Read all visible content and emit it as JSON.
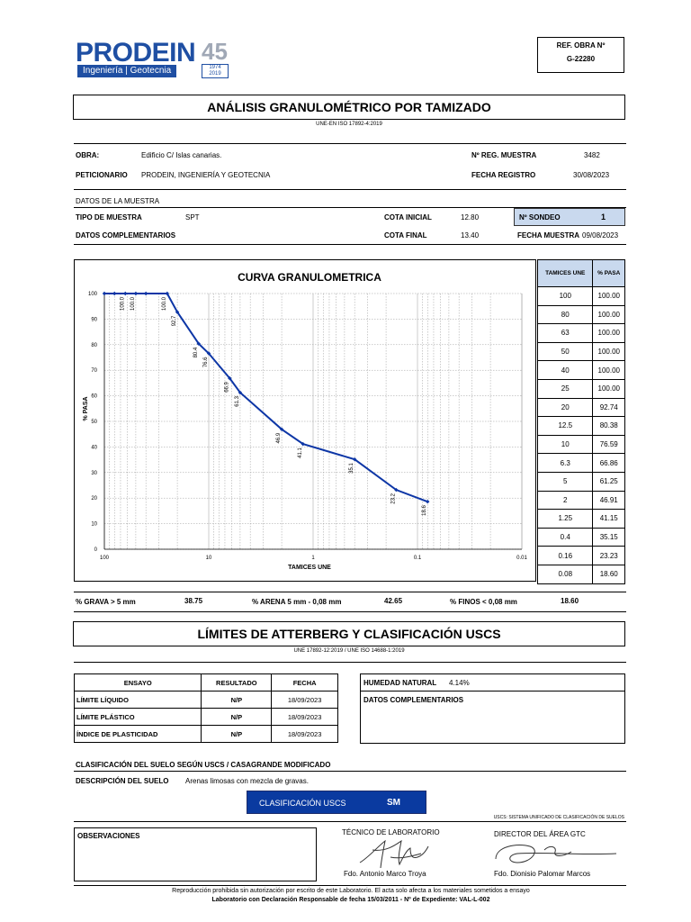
{
  "logo": {
    "name": "PRODEIN",
    "tagline": "Ingeniería | Geotecnia",
    "anniversary": "45",
    "years_top": "1974",
    "years_bottom": "2019"
  },
  "ref": {
    "label": "REF. OBRA Nº",
    "value": "G-22280"
  },
  "title": "ANÁLISIS GRANULOMÉTRICO POR TAMIZADO",
  "norm1": "UNE-EN ISO 17892-4:2019",
  "obra": {
    "label": "OBRA:",
    "value": "Edificio C/ Islas canarias."
  },
  "reg_muestra": {
    "label": "Nº REG. MUESTRA",
    "value": "3482"
  },
  "peticionario": {
    "label": "PETICIONARIO",
    "value": "PRODEIN, INGENIERÍA Y GEOTECNIA"
  },
  "fecha_registro": {
    "label": "FECHA REGISTRO",
    "value": "30/08/2023"
  },
  "datos_muestra": "DATOS DE LA MUESTRA",
  "tipo_muestra": {
    "label": "TIPO DE MUESTRA",
    "value": "SPT"
  },
  "cota_inicial": {
    "label": "COTA INICIAL",
    "value": "12.80"
  },
  "sondeo": {
    "label": "Nº SONDEO",
    "value": "1"
  },
  "datos_complementarios": {
    "label": "DATOS COMPLEMENTARIOS"
  },
  "cota_final": {
    "label": "COTA FINAL",
    "value": "13.40"
  },
  "fecha_muestra": {
    "label": "FECHA MUESTRA",
    "value": "09/08/2023"
  },
  "chart_data": {
    "type": "line",
    "title": "CURVA GRANULOMETRICA",
    "xlabel": "TAMICES UNE",
    "ylabel": "% PASA",
    "x_scale": "log",
    "x_reversed": true,
    "xlim": [
      100,
      0.01
    ],
    "ylim": [
      0,
      100
    ],
    "x_ticks": [
      "100",
      "10",
      "1",
      "0.1",
      "0.01"
    ],
    "y_ticks": [
      "0",
      "10",
      "20",
      "30",
      "40",
      "50",
      "60",
      "70",
      "80",
      "90",
      "100"
    ],
    "grid": true,
    "x": [
      100,
      80,
      63,
      50,
      40,
      25,
      20,
      12.5,
      10,
      6.3,
      5,
      2,
      1.25,
      0.4,
      0.16,
      0.08
    ],
    "y": [
      100,
      100,
      100,
      100,
      100,
      100,
      92.74,
      80.38,
      76.59,
      66.86,
      61.25,
      46.91,
      41.15,
      35.15,
      23.23,
      18.6
    ],
    "point_labels": [
      "",
      "",
      "100.0",
      "100.0",
      "",
      "100.0",
      "92.7",
      "80.4",
      "76.6",
      "66.9",
      "61.3",
      "46.9",
      "41.1",
      "35.1",
      "23.2",
      "18.6"
    ],
    "color": "#0d36a6"
  },
  "sieve_table": {
    "head_sieve": "TAMICES UNE",
    "head_pass": "% PASA",
    "rows": [
      [
        "100",
        "100.00"
      ],
      [
        "80",
        "100.00"
      ],
      [
        "63",
        "100.00"
      ],
      [
        "50",
        "100.00"
      ],
      [
        "40",
        "100.00"
      ],
      [
        "25",
        "100.00"
      ],
      [
        "20",
        "92.74"
      ],
      [
        "12.5",
        "80.38"
      ],
      [
        "10",
        "76.59"
      ],
      [
        "6.3",
        "66.86"
      ],
      [
        "5",
        "61.25"
      ],
      [
        "2",
        "46.91"
      ],
      [
        "1.25",
        "41.15"
      ],
      [
        "0.4",
        "35.15"
      ],
      [
        "0.16",
        "23.23"
      ],
      [
        "0.08",
        "18.60"
      ]
    ]
  },
  "summary": {
    "grava_label": "% GRAVA > 5 mm",
    "grava": "38.75",
    "arena_label": "% ARENA 5 mm - 0,08 mm",
    "arena": "42.65",
    "finos_label": "% FINOS < 0,08 mm",
    "finos": "18.60"
  },
  "atterberg_title": "LÍMITES DE ATTERBERG Y CLASIFICACIÓN USCS",
  "norm2": "UNE 17892-12:2019 / UNE ISO 14688-1:2019",
  "att_table": {
    "headers": [
      "ENSAYO",
      "RESULTADO",
      "FECHA"
    ],
    "rows": [
      [
        "LÍMITE LÍQUIDO",
        "N/P",
        "18/09/2023"
      ],
      [
        "LÍMITE PLÁSTICO",
        "N/P",
        "18/09/2023"
      ],
      [
        "ÍNDICE DE PLASTICIDAD",
        "N/P",
        "18/09/2023"
      ]
    ]
  },
  "humedad": {
    "label": "HUMEDAD NATURAL",
    "value": "4.14%"
  },
  "datos_comp2": "DATOS COMPLEMENTARIOS",
  "clasificacion_title": "CLASIFICACIÓN DEL SUELO SEGÚN USCS / CASAGRANDE MODIFICADO",
  "descripcion": {
    "label": "DESCRIPCIÓN DEL SUELO",
    "value": "Arenas limosas con mezcla de gravas."
  },
  "uscs": {
    "label": "CLASIFICACIÓN USCS",
    "value": "SM",
    "note": "USCS: SISTEMA UNIFICADO DE CLASIFICACIÓN DE SUELOS"
  },
  "observaciones": "OBSERVACIONES",
  "tecnico": {
    "title": "TÉCNICO DE LABORATORIO",
    "name": "Fdo. Antonio Marco Troya"
  },
  "director": {
    "title": "DIRECTOR DEL ÁREA GTC",
    "name": "Fdo. Dionisio Palomar Marcos"
  },
  "footer1": "Reproducción prohibida sin autorización por escrito de este Laboratorio. El acta solo afecta a los materiales sometidos a ensayo",
  "footer2": "Laboratorio con Declaración Responsable de fecha 15/03/2011 - Nº de Expediente: VAL-L-002"
}
